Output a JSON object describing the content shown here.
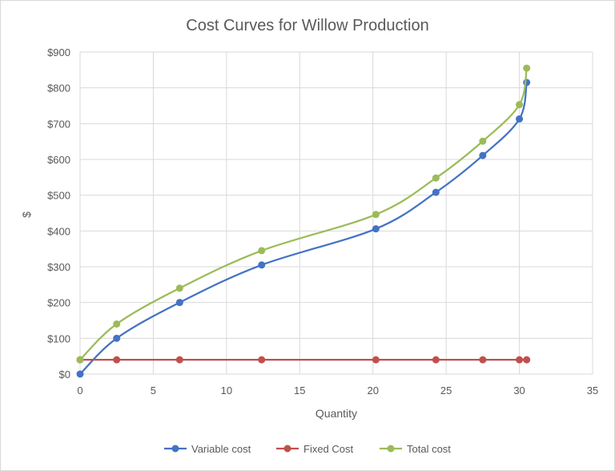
{
  "chart_data": {
    "type": "scatter",
    "title": "Cost Curves for Willow Production",
    "xlabel": "Quantity",
    "ylabel": "$",
    "xlim": [
      0,
      35
    ],
    "ylim": [
      0,
      900
    ],
    "xticks": [
      "0",
      "5",
      "10",
      "15",
      "20",
      "25",
      "30",
      "35"
    ],
    "yticks": [
      "$0",
      "$100",
      "$200",
      "$300",
      "$400",
      "$500",
      "$600",
      "$700",
      "$800",
      "$900"
    ],
    "grid": true,
    "smooth_lines": true,
    "legend_position": "bottom",
    "series": [
      {
        "name": "Variable cost",
        "color": "#4472c4",
        "x": [
          0,
          2.5,
          6.8,
          12.4,
          20.2,
          24.3,
          27.5,
          30.0,
          30.5
        ],
        "y": [
          0,
          100,
          200,
          305,
          406,
          508,
          611,
          713,
          815
        ]
      },
      {
        "name": "Fixed Cost",
        "color": "#c0504d",
        "x": [
          0,
          2.5,
          6.8,
          12.4,
          20.2,
          24.3,
          27.5,
          30.0,
          30.5
        ],
        "y": [
          40,
          40,
          40,
          40,
          40,
          40,
          40,
          40,
          40
        ]
      },
      {
        "name": "Total cost",
        "color": "#9bbb59",
        "x": [
          0,
          2.5,
          6.8,
          12.4,
          20.2,
          24.3,
          27.5,
          30.0,
          30.5
        ],
        "y": [
          40,
          140,
          240,
          345,
          446,
          548,
          651,
          753,
          855
        ]
      }
    ]
  }
}
